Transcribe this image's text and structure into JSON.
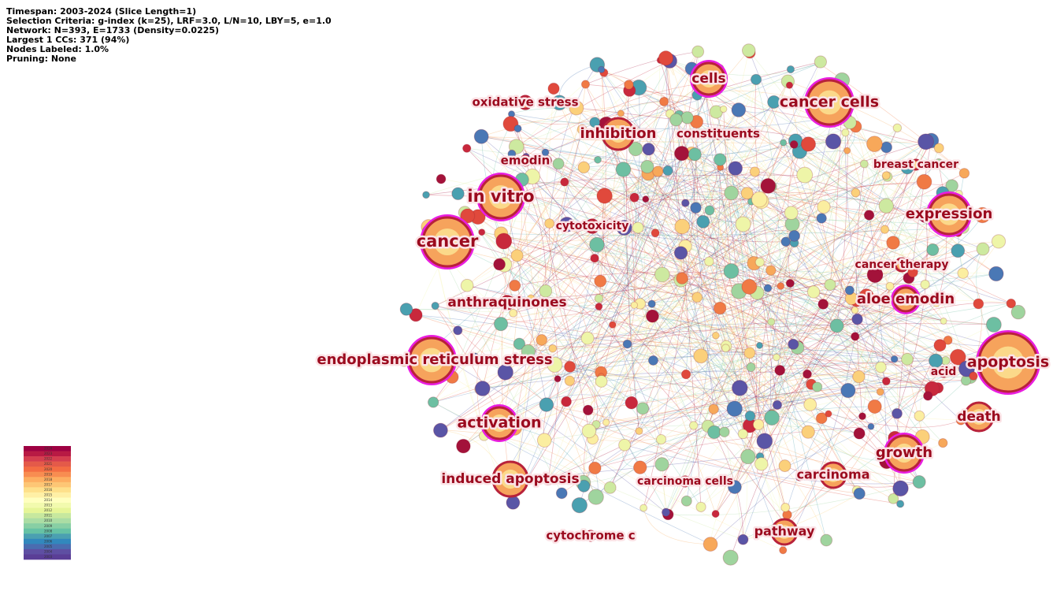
{
  "header": {
    "lines": [
      "Timespan: 2003-2024 (Slice Length=1)",
      "Selection Criteria: g-index (k=25), LRF=3.0, L/N=10, LBY=5, e=1.0",
      "Network: N=393, E=1733 (Density=0.0225)",
      "Largest 1 CCs: 371 (94%)",
      "Nodes Labeled: 1.0%",
      "Pruning: None"
    ]
  },
  "nodes": [
    {
      "label": "cells"
    },
    {
      "label": "cancer cells"
    },
    {
      "label": "oxidative stress"
    },
    {
      "label": "inhibition"
    },
    {
      "label": "constituents"
    },
    {
      "label": "emodin"
    },
    {
      "label": "breast cancer"
    },
    {
      "label": "in vitro"
    },
    {
      "label": "expression"
    },
    {
      "label": "cytotoxicity"
    },
    {
      "label": "cancer"
    },
    {
      "label": "cancer therapy"
    },
    {
      "label": "anthraquinones"
    },
    {
      "label": "aloe emodin"
    },
    {
      "label": "endoplasmic reticulum stress"
    },
    {
      "label": "apoptosis"
    },
    {
      "label": "acid"
    },
    {
      "label": "death"
    },
    {
      "label": "activation"
    },
    {
      "label": "growth"
    },
    {
      "label": "induced apoptosis"
    },
    {
      "label": "carcinoma cells"
    },
    {
      "label": "carcinoma"
    },
    {
      "label": "pathway"
    },
    {
      "label": "cytochrome c"
    }
  ],
  "legend": {
    "years": [
      "2024",
      "2023",
      "2022",
      "2021",
      "2020",
      "2019",
      "2018",
      "2017",
      "2016",
      "2015",
      "2014",
      "2013",
      "2012",
      "2011",
      "2010",
      "2009",
      "2008",
      "2007",
      "2006",
      "2005",
      "2004",
      "2003"
    ]
  }
}
